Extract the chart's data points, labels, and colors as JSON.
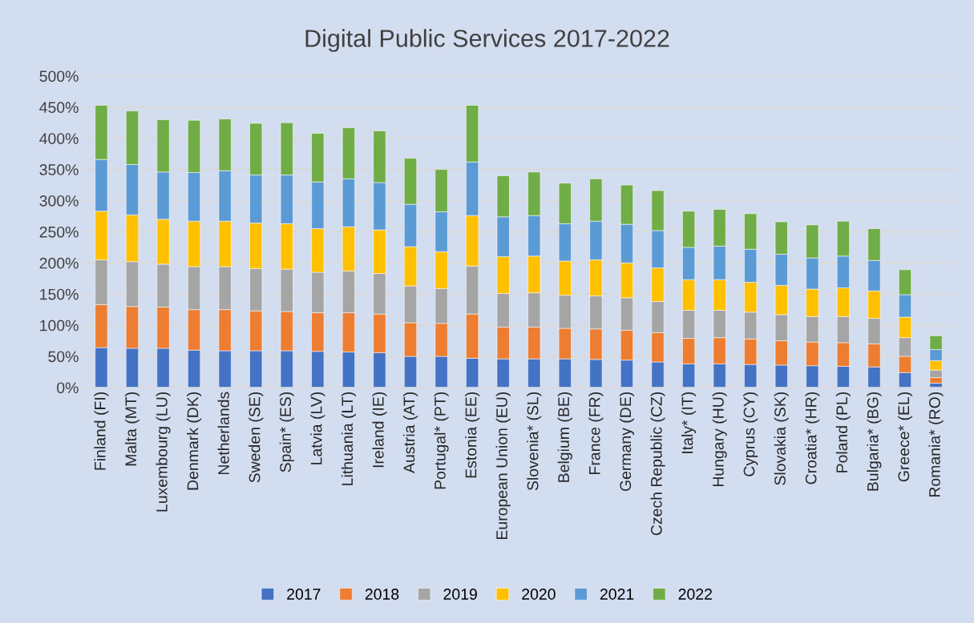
{
  "chart_data": {
    "type": "bar",
    "title": "Digital Public Services 2017-2022",
    "stacked": true,
    "categories": [
      "Finland (FI)",
      "Malta (MT)",
      "Luxembourg (LU)",
      "Denmark (DK)",
      "Netherlands",
      "Sweden (SE)",
      "Spain* (ES)",
      "Latvia (LV)",
      "Lithuania (LT)",
      "Ireland (IE)",
      "Austria (AT)",
      "Portugal* (PT)",
      "Estonia (EE)",
      "European Union (EU)",
      "Slovenia* (SL)",
      "Belgium (BE)",
      "France (FR)",
      "Germany (DE)",
      "Czech Republic (CZ)",
      "Italy* (IT)",
      "Hungary (HU)",
      "Cyprus (CY)",
      "Slovakia (SK)",
      "Croatia* (HR)",
      "Poland (PL)",
      "Bulgaria* (BG)",
      "Greece* (EL)",
      "Romania* (RO)"
    ],
    "series": [
      {
        "name": "2017",
        "color": "#4472c4",
        "values": [
          64,
          63,
          63,
          60,
          59,
          59,
          59,
          58,
          57,
          56,
          50,
          50,
          47,
          46,
          46,
          46,
          45,
          44,
          41,
          38,
          38,
          37,
          36,
          35,
          34,
          33,
          24,
          7
        ]
      },
      {
        "name": "2018",
        "color": "#ed7d31",
        "values": [
          69,
          67,
          66,
          65,
          66,
          64,
          63,
          62,
          63,
          62,
          54,
          53,
          71,
          51,
          51,
          49,
          49,
          48,
          47,
          41,
          42,
          41,
          39,
          38,
          38,
          37,
          26,
          9
        ]
      },
      {
        "name": "2019",
        "color": "#a5a5a5",
        "values": [
          72,
          72,
          69,
          69,
          69,
          68,
          68,
          65,
          67,
          65,
          59,
          56,
          77,
          54,
          55,
          53,
          53,
          52,
          50,
          45,
          44,
          43,
          42,
          41,
          42,
          41,
          30,
          12
        ]
      },
      {
        "name": "2020",
        "color": "#ffc000",
        "values": [
          78,
          75,
          72,
          73,
          73,
          73,
          73,
          70,
          71,
          70,
          63,
          59,
          81,
          59,
          59,
          55,
          58,
          56,
          54,
          49,
          49,
          48,
          47,
          44,
          46,
          44,
          33,
          15
        ]
      },
      {
        "name": "2021",
        "color": "#5b9bd5",
        "values": [
          83,
          81,
          76,
          78,
          81,
          77,
          78,
          75,
          77,
          76,
          68,
          64,
          86,
          64,
          65,
          60,
          62,
          62,
          60,
          52,
          54,
          53,
          50,
          50,
          51,
          49,
          36,
          18
        ]
      },
      {
        "name": "2022",
        "color": "#70ad47",
        "values": [
          87,
          86,
          84,
          84,
          83,
          83,
          84,
          78,
          82,
          83,
          74,
          68,
          91,
          66,
          70,
          65,
          68,
          63,
          64,
          58,
          59,
          57,
          52,
          53,
          56,
          51,
          40,
          22
        ]
      }
    ],
    "ylim": [
      0,
      500
    ],
    "yticks": [
      {
        "value": 0,
        "label": "0%"
      },
      {
        "value": 50,
        "label": "50%"
      },
      {
        "value": 100,
        "label": "100%"
      },
      {
        "value": 150,
        "label": "150%"
      },
      {
        "value": 200,
        "label": "200%"
      },
      {
        "value": 250,
        "label": "250%"
      },
      {
        "value": 300,
        "label": "300%"
      },
      {
        "value": 350,
        "label": "350%"
      },
      {
        "value": 400,
        "label": "400%"
      },
      {
        "value": 450,
        "label": "450%"
      },
      {
        "value": 500,
        "label": "500%"
      }
    ],
    "grid": "y",
    "legend": "bottom"
  }
}
